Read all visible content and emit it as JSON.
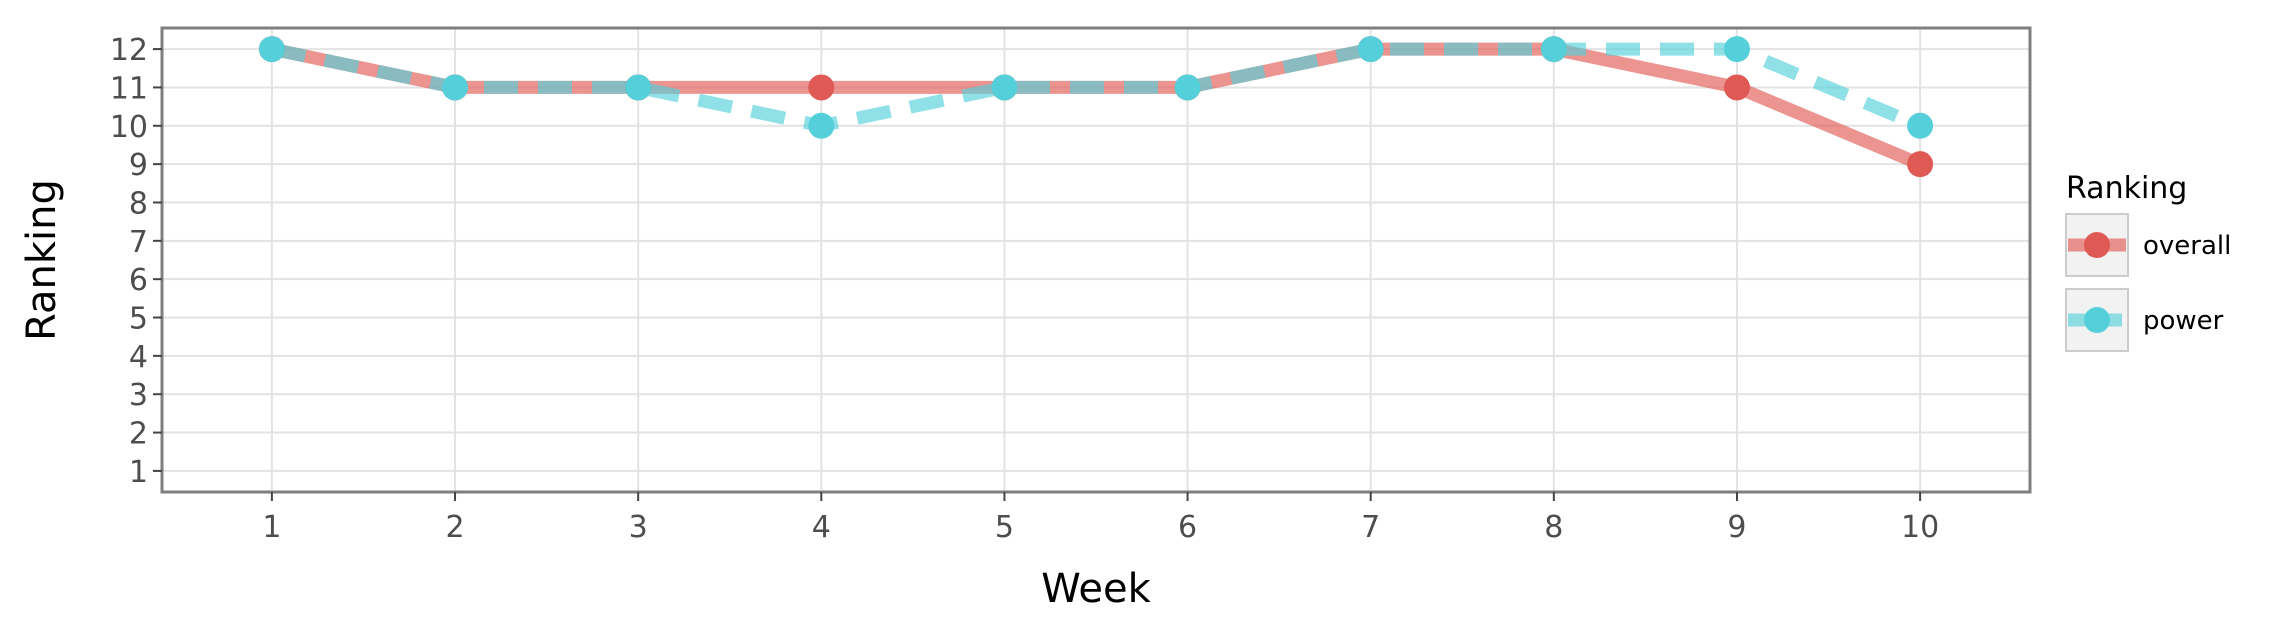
{
  "chart_data": {
    "type": "line",
    "xlabel": "Week",
    "ylabel": "Ranking",
    "x": [
      1,
      2,
      3,
      4,
      5,
      6,
      7,
      8,
      9,
      10
    ],
    "x_ticks": [
      "1",
      "2",
      "3",
      "4",
      "5",
      "6",
      "7",
      "8",
      "9",
      "10"
    ],
    "y_ticks": [
      "1",
      "2",
      "3",
      "4",
      "5",
      "6",
      "7",
      "8",
      "9",
      "10",
      "11",
      "12"
    ],
    "xlim": [
      0.4,
      10.6
    ],
    "ylim": [
      12.55,
      0.45
    ],
    "y_reversed": true,
    "grid": true,
    "legend": {
      "title": "Ranking",
      "placement": "right"
    },
    "series": [
      {
        "name": "overall",
        "values": [
          12,
          11,
          11,
          11,
          11,
          11,
          12,
          12,
          11,
          9
        ],
        "color": "#e05a55",
        "line_style": "solid"
      },
      {
        "name": "power",
        "values": [
          12,
          11,
          11,
          10,
          11,
          11,
          12,
          12,
          12,
          10
        ],
        "color": "#55d0da",
        "line_style": "dashed"
      }
    ]
  }
}
